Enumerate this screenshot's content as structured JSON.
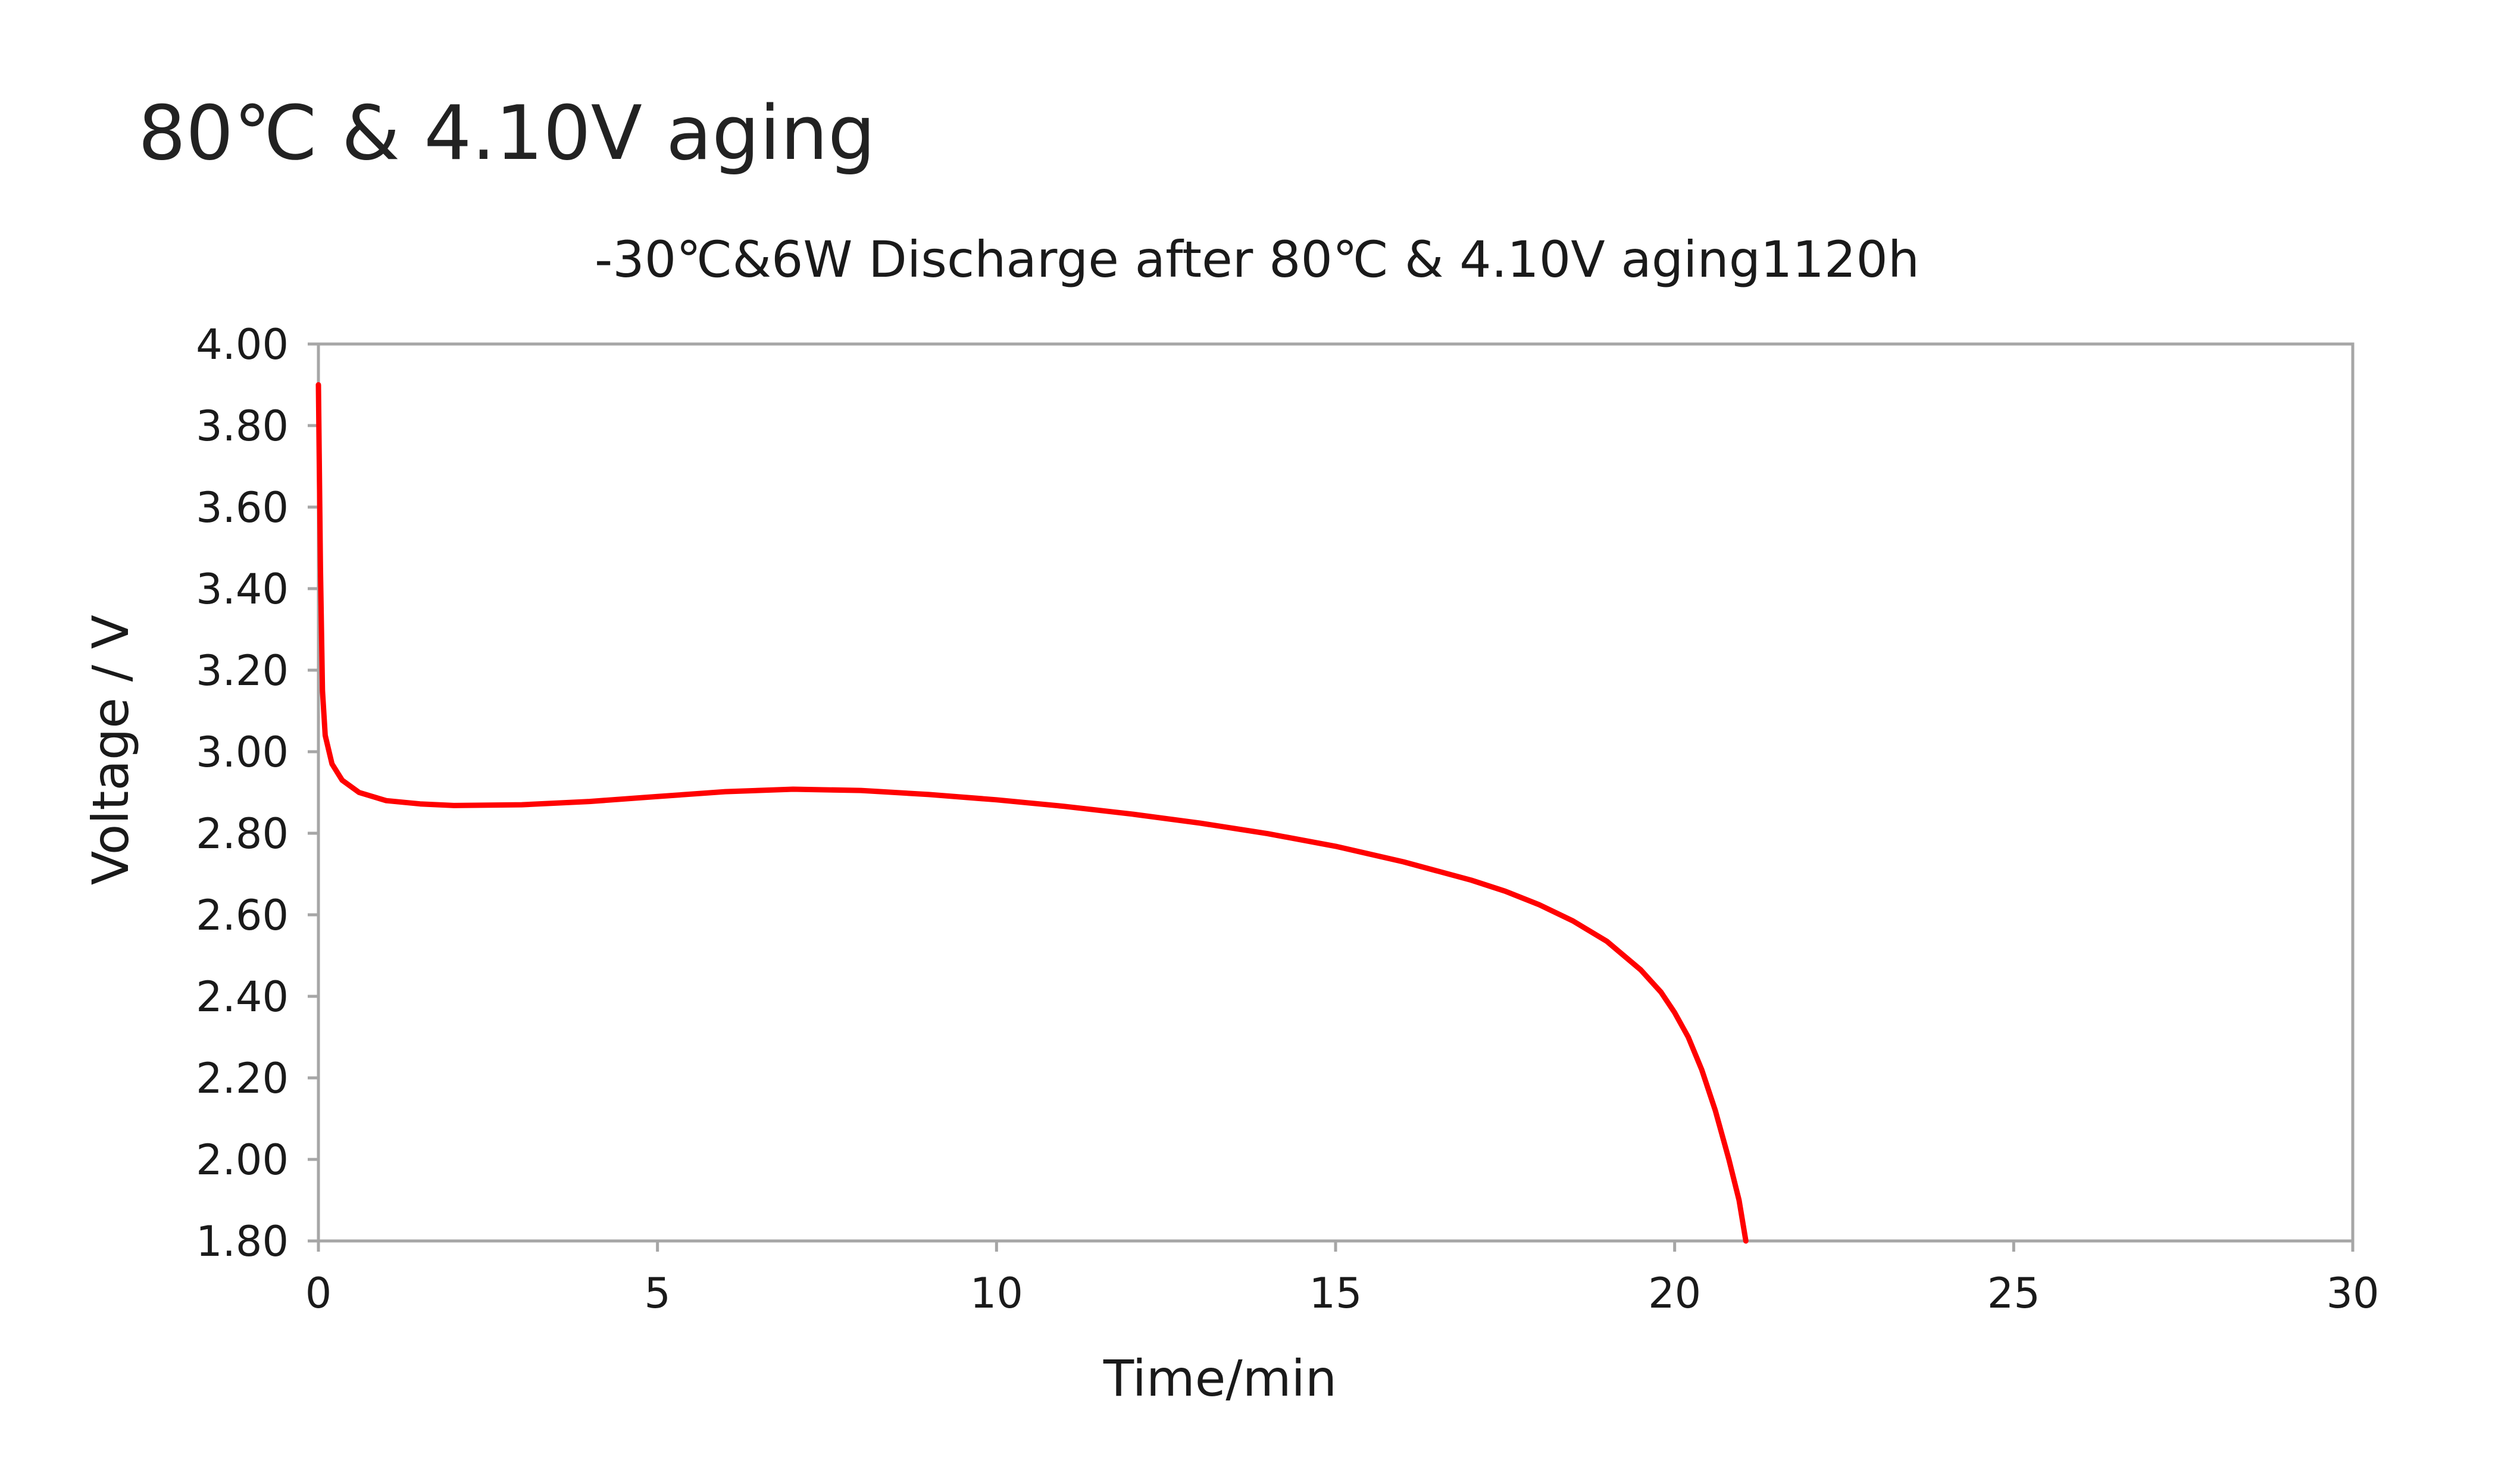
{
  "page": {
    "heading": "80℃ & 4.10V aging"
  },
  "colors": {
    "series": "#ff0000",
    "plot_border": "#a6a6a6",
    "text": "#1a1a1a"
  },
  "chart_data": {
    "type": "line",
    "title": "-30℃&6W Discharge after  80℃ & 4.10V aging1120h",
    "xlabel": "Time/min",
    "ylabel": "Voltage / V",
    "xlim": [
      0,
      30
    ],
    "ylim": [
      1.8,
      4.0
    ],
    "x_ticks": [
      0,
      5,
      10,
      15,
      20,
      25,
      30
    ],
    "x_tick_labels": [
      "0",
      "5",
      "10",
      "15",
      "20",
      "25",
      "30"
    ],
    "y_ticks": [
      1.8,
      2.0,
      2.2,
      2.4,
      2.6,
      2.8,
      3.0,
      3.2,
      3.4,
      3.6,
      3.8,
      4.0
    ],
    "y_tick_labels": [
      "1.80",
      "2.00",
      "2.20",
      "2.40",
      "2.60",
      "2.80",
      "3.00",
      "3.20",
      "3.40",
      "3.60",
      "3.80",
      "4.00"
    ],
    "grid": false,
    "legend": "none",
    "series": [
      {
        "color": "#ff0000",
        "points": [
          [
            0,
            3.9
          ],
          [
            0.03,
            3.45
          ],
          [
            0.06,
            3.15
          ],
          [
            0.1,
            3.04
          ],
          [
            0.2,
            2.97
          ],
          [
            0.35,
            2.93
          ],
          [
            0.6,
            2.9
          ],
          [
            1.0,
            2.88
          ],
          [
            1.5,
            2.872
          ],
          [
            2.0,
            2.868
          ],
          [
            3.0,
            2.87
          ],
          [
            4.0,
            2.878
          ],
          [
            5.0,
            2.89
          ],
          [
            6.0,
            2.902
          ],
          [
            7.0,
            2.908
          ],
          [
            8.0,
            2.905
          ],
          [
            9.0,
            2.895
          ],
          [
            10.0,
            2.882
          ],
          [
            11.0,
            2.866
          ],
          [
            12.0,
            2.847
          ],
          [
            13.0,
            2.825
          ],
          [
            14.0,
            2.799
          ],
          [
            15.0,
            2.768
          ],
          [
            16.0,
            2.73
          ],
          [
            17.0,
            2.685
          ],
          [
            17.5,
            2.658
          ],
          [
            18.0,
            2.625
          ],
          [
            18.5,
            2.585
          ],
          [
            19.0,
            2.535
          ],
          [
            19.5,
            2.465
          ],
          [
            19.8,
            2.41
          ],
          [
            20.0,
            2.36
          ],
          [
            20.2,
            2.3
          ],
          [
            20.4,
            2.22
          ],
          [
            20.6,
            2.12
          ],
          [
            20.8,
            2.0
          ],
          [
            20.95,
            1.9
          ],
          [
            21.05,
            1.8
          ]
        ]
      }
    ]
  }
}
